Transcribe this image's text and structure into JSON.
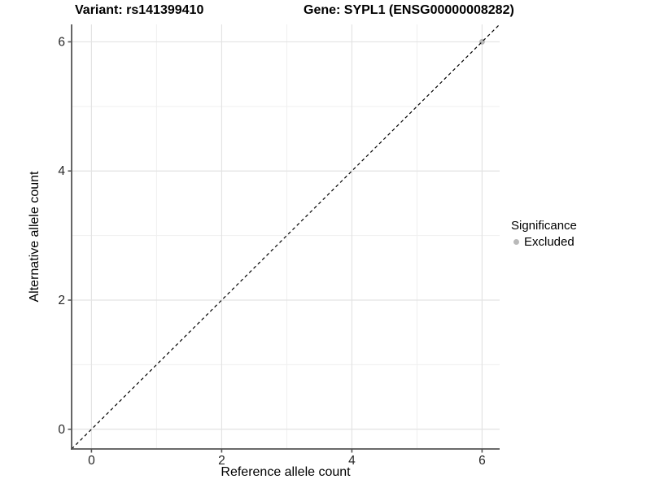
{
  "titles": {
    "left": "Variant: rs141399410",
    "right": "Gene: SYPL1 (ENSG00000008282)"
  },
  "chart_data": {
    "type": "scatter",
    "xlabel": "Reference allele count",
    "ylabel": "Alternative allele count",
    "xlim": [
      -0.305,
      6.27
    ],
    "ylim": [
      -0.305,
      6.27
    ],
    "x_ticks_major": [
      0,
      2,
      4,
      6
    ],
    "x_ticks_minor": [
      1,
      3,
      5
    ],
    "y_ticks_major": [
      0,
      2,
      4,
      6
    ],
    "y_ticks_minor": [
      1,
      3,
      5
    ],
    "grid": "on",
    "abline": {
      "slope": 1,
      "intercept": 0,
      "style": "dashed",
      "color": "#000000",
      "width": 1.2,
      "dash": "4 3.5"
    },
    "series": [
      {
        "name": "Excluded",
        "color": "#b9b9b9",
        "point_radius": 3.5,
        "points": [
          {
            "x": 6,
            "y": 6
          }
        ]
      }
    ],
    "legend": {
      "title": "Significance",
      "position": "right",
      "items": [
        {
          "label": "Excluded",
          "color": "#b9b9b9"
        }
      ]
    },
    "colors": {
      "grid_major": "#e3e3e3",
      "grid_minor": "#efefef",
      "axis_line": "#555555",
      "tick_label": "#262626",
      "background": "#ffffff"
    }
  }
}
